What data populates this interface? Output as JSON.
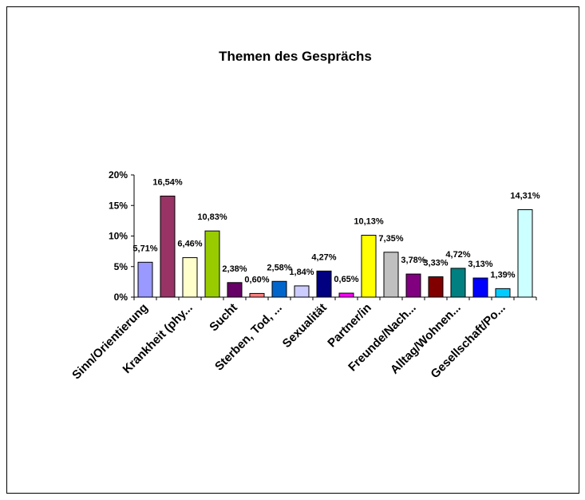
{
  "chart_data": {
    "type": "bar",
    "title": "Themen des Gesprächs",
    "categories": [
      "Sinn/Orientierung",
      null,
      "Krankheit (phy...",
      null,
      "Sucht",
      null,
      "Sterben, Tod, ...",
      null,
      "Sexualität",
      null,
      "Partner/in",
      null,
      "Freunde/Nach...",
      null,
      "Alltag/Wohnen...",
      null,
      "Gesellschaft/Po...",
      null
    ],
    "values": [
      5.71,
      16.54,
      6.46,
      10.83,
      2.38,
      0.6,
      2.58,
      1.84,
      4.27,
      0.65,
      10.13,
      7.35,
      3.78,
      3.33,
      4.72,
      3.13,
      1.39,
      14.31
    ],
    "value_labels": [
      "5,71%",
      "16,54%",
      "6,46%",
      "10,83%",
      "2,38%",
      "0,60%",
      "2,58%",
      "1,84%",
      "4,27%",
      "0,65%",
      "10,13%",
      "7,35%",
      "3,78%",
      "3,33%",
      "4,72%",
      "3,13%",
      "1,39%",
      "14,31%"
    ],
    "colors": [
      "#9999ff",
      "#993366",
      "#ffffcc",
      "#99cc00",
      "#660066",
      "#ff8080",
      "#0066cc",
      "#ccccff",
      "#000080",
      "#ff00ff",
      "#ffff00",
      "#c0c0c0",
      "#800080",
      "#800000",
      "#008080",
      "#0000ff",
      "#00ccff",
      "#ccffff"
    ],
    "ylim": [
      0,
      20
    ],
    "yticks": [
      {
        "value": 0,
        "label": "0%"
      },
      {
        "value": 5,
        "label": "5%"
      },
      {
        "value": 10,
        "label": "10%"
      },
      {
        "value": 15,
        "label": "15%"
      },
      {
        "value": 20,
        "label": "20%"
      }
    ]
  }
}
